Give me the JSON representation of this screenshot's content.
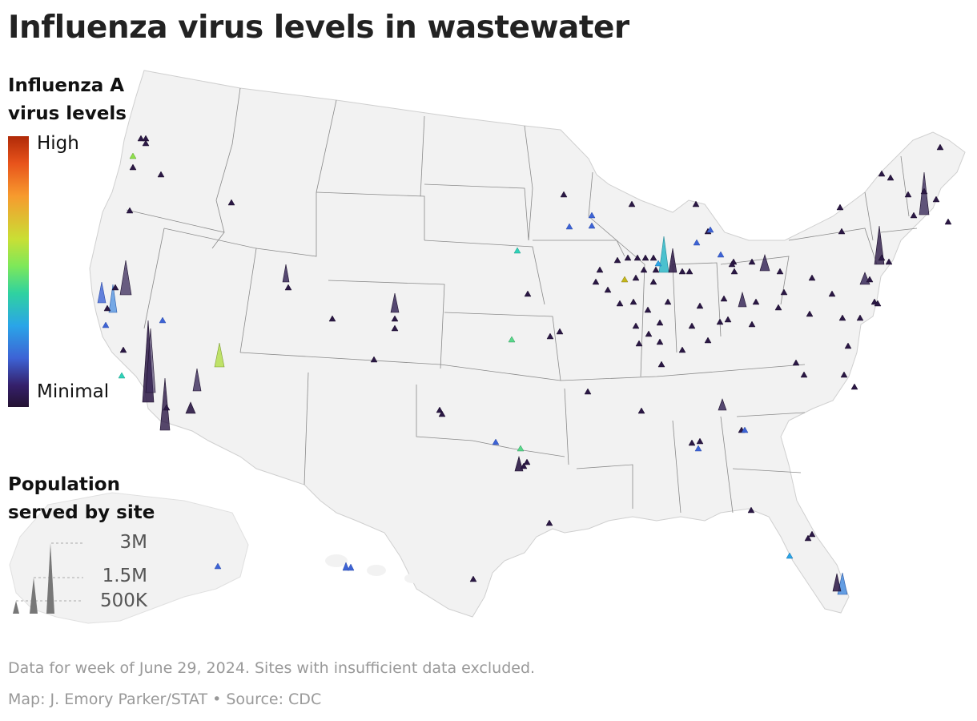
{
  "title": "Influenza virus levels in wastewater",
  "legend": {
    "color_heading": [
      "Influenza A",
      "virus levels"
    ],
    "high_label": "High",
    "low_label": "Minimal",
    "size_heading": [
      "Population",
      "served by site"
    ],
    "size_labels": [
      "3M",
      "1.5M",
      "500K"
    ]
  },
  "footer": {
    "note": "Data for week of June 29, 2024. Sites with insufficient data excluded.",
    "credit": "Map: J. Emory Parker/STAT • Source: CDC"
  },
  "colors": {
    "land": "#f2f2f2",
    "border": "#8a8a8a",
    "minimal": "#2b1845",
    "high": "#b02a08",
    "legend_spike": "#777777"
  }
}
